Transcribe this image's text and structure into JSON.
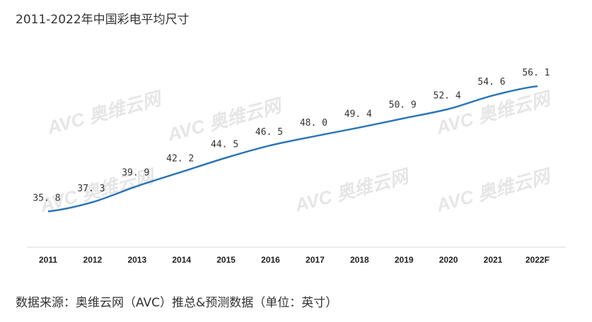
{
  "title": "2011-2022年中国彩电平均尺寸",
  "source": "数据来源：奥维云网（AVC）推总&预测数据（单位：英寸）",
  "watermark": "AVC 奥维云网",
  "chart_data": {
    "type": "line",
    "title": "2011-2022年中国彩电平均尺寸",
    "categories": [
      "2011",
      "2012",
      "2013",
      "2014",
      "2015",
      "2016",
      "2017",
      "2018",
      "2019",
      "2020",
      "2021",
      "2022F"
    ],
    "series": [
      {
        "values": [
          35.8,
          37.3,
          39.9,
          42.2,
          44.5,
          46.5,
          48.0,
          49.4,
          50.9,
          52.4,
          54.6,
          56.1
        ]
      }
    ],
    "data_labels": [
      "35. 8",
      "37. 3",
      "39. 9",
      "42. 2",
      "44. 5",
      "46. 5",
      "48. 0",
      "49. 4",
      "50. 9",
      "52. 4",
      "54. 6",
      "56. 1"
    ],
    "ylim": [
      30,
      60
    ],
    "grid": false,
    "line_color": "#2e75b6"
  }
}
